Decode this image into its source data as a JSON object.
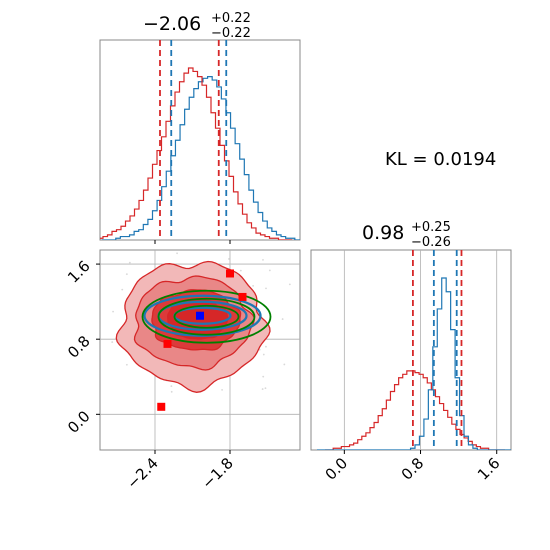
{
  "chart_data": {
    "type": "corner",
    "colors": {
      "blue": "#1f77b4",
      "red": "#d62728",
      "green": "#008000",
      "grid": "#b0b0b0"
    },
    "annotation": "KL = 0.0194",
    "param1": {
      "title_main": "−2.06",
      "title_plus": "+0.22",
      "title_minus": "−0.22",
      "xticks": [
        {
          "value": -2.4,
          "label": "−2.4"
        },
        {
          "value": -1.8,
          "label": "−1.8"
        }
      ],
      "xlim": [
        -2.84,
        -1.24
      ],
      "quantiles_blue": [
        -2.27,
        -1.83
      ],
      "quantiles_red": [
        -2.36,
        -1.89
      ],
      "hist_blue": [
        0,
        0,
        0,
        1,
        2,
        2,
        3,
        5,
        6,
        9,
        12,
        17,
        23,
        31,
        40,
        49,
        58,
        67,
        76,
        83,
        88,
        92,
        94,
        95,
        93,
        89,
        82,
        74,
        65,
        56,
        47,
        38,
        29,
        22,
        16,
        11,
        7,
        5,
        3,
        2,
        1,
        1,
        0,
        0
      ],
      "hist_red": [
        0,
        1,
        2,
        3,
        5,
        6,
        8,
        11,
        14,
        18,
        23,
        29,
        36,
        44,
        52,
        60,
        69,
        78,
        86,
        92,
        97,
        100,
        98,
        95,
        90,
        83,
        74,
        65,
        55,
        46,
        37,
        28,
        21,
        15,
        10,
        7,
        4,
        3,
        2,
        1,
        1,
        0,
        0,
        0
      ]
    },
    "param2": {
      "title_main": "0.98",
      "title_plus": "+0.25",
      "title_minus": "−0.26",
      "xticks": [
        {
          "value": 0.0,
          "label": "0.0"
        },
        {
          "value": 0.8,
          "label": "0.8"
        },
        {
          "value": 1.6,
          "label": "1.6"
        }
      ],
      "xlim": [
        -0.35,
        1.75
      ],
      "quantiles_blue": [
        0.94,
        1.18
      ],
      "quantiles_red": [
        0.72,
        1.23
      ],
      "hist_blue": [
        0,
        0,
        0,
        0,
        0,
        0,
        0,
        0,
        0,
        0,
        0,
        0,
        0,
        0,
        0,
        0,
        0,
        0,
        0,
        0,
        0,
        1,
        3,
        8,
        18,
        35,
        60,
        82,
        100,
        92,
        70,
        42,
        20,
        8,
        3,
        1,
        0,
        0,
        0,
        0,
        0,
        0,
        0,
        0
      ],
      "hist_red": [
        0,
        0,
        1,
        1,
        2,
        2,
        3,
        4,
        6,
        8,
        10,
        13,
        16,
        20,
        24,
        29,
        34,
        38,
        42,
        44,
        46,
        46,
        45,
        44,
        42,
        39,
        35,
        31,
        27,
        23,
        19,
        15,
        12,
        9,
        7,
        5,
        3,
        2,
        1,
        1,
        0,
        0,
        0,
        0
      ]
    },
    "joint": {
      "xlim": [
        -2.84,
        -1.24
      ],
      "ylim": [
        -0.38,
        1.75
      ],
      "yticks": [
        {
          "value": 0.0,
          "label": "0.0"
        },
        {
          "value": 0.8,
          "label": "0.8"
        },
        {
          "value": 1.6,
          "label": "1.6"
        }
      ],
      "blue_mean": [
        -2.04,
        1.05
      ],
      "red_markers": [
        [
          -1.8,
          1.5
        ],
        [
          -1.7,
          1.25
        ],
        [
          -2.3,
          0.75
        ],
        [
          -2.35,
          0.08
        ]
      ]
    }
  }
}
